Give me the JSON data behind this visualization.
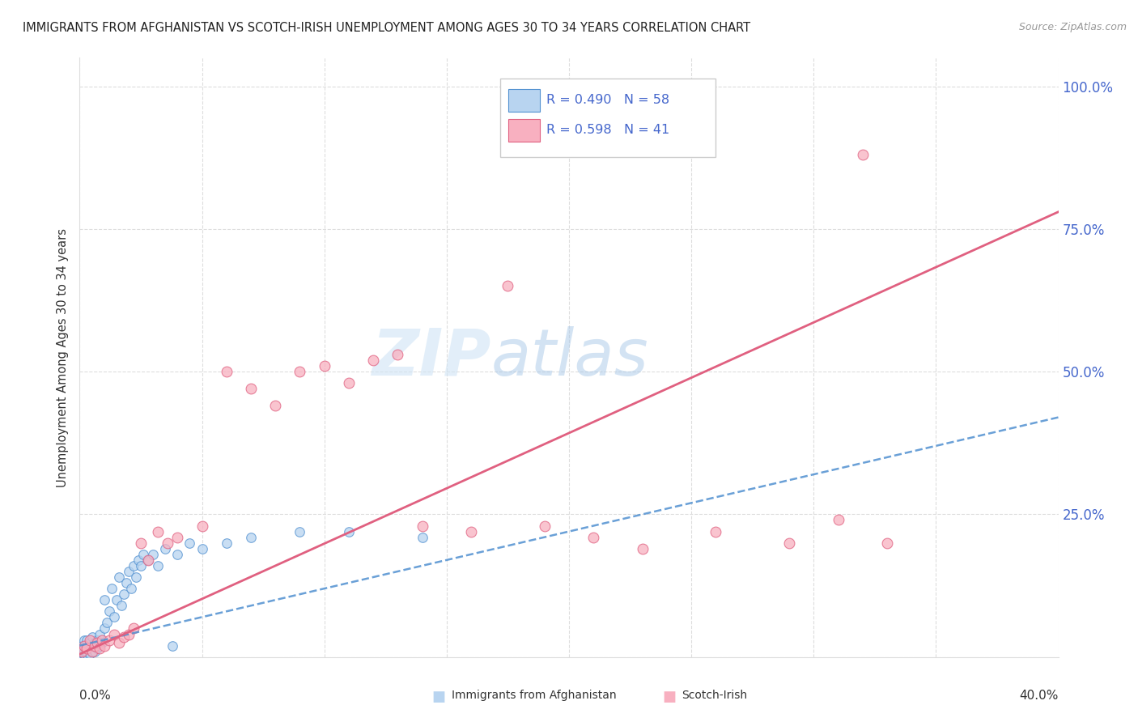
{
  "title": "IMMIGRANTS FROM AFGHANISTAN VS SCOTCH-IRISH UNEMPLOYMENT AMONG AGES 30 TO 34 YEARS CORRELATION CHART",
  "source": "Source: ZipAtlas.com",
  "ylabel": "Unemployment Among Ages 30 to 34 years",
  "ytick_vals": [
    0.0,
    0.25,
    0.5,
    0.75,
    1.0
  ],
  "ytick_labels": [
    "",
    "25.0%",
    "50.0%",
    "75.0%",
    "100.0%"
  ],
  "xlim": [
    0.0,
    0.4
  ],
  "ylim": [
    0.0,
    1.05
  ],
  "afghanistan_R": "0.490",
  "afghanistan_N": "58",
  "scotch_R": "0.598",
  "scotch_N": "41",
  "afghanistan_fill": "#b8d4f0",
  "afghanistan_edge": "#5090d0",
  "scotch_fill": "#f8b0c0",
  "scotch_edge": "#e06080",
  "afg_line_color": "#5090d0",
  "sci_line_color": "#e06080",
  "legend_text_color": "#4466cc",
  "watermark_color": "#d0e4f5",
  "background": "#ffffff",
  "grid_color": "#dddddd",
  "title_color": "#222222",
  "ylabel_color": "#333333",
  "tick_label_color": "#4466cc",
  "afg_scatter_x": [
    0.0005,
    0.001,
    0.001,
    0.0015,
    0.0015,
    0.002,
    0.002,
    0.002,
    0.002,
    0.0025,
    0.003,
    0.003,
    0.003,
    0.003,
    0.004,
    0.004,
    0.004,
    0.005,
    0.005,
    0.005,
    0.006,
    0.006,
    0.007,
    0.007,
    0.008,
    0.008,
    0.009,
    0.01,
    0.01,
    0.011,
    0.012,
    0.013,
    0.014,
    0.015,
    0.016,
    0.017,
    0.018,
    0.019,
    0.02,
    0.021,
    0.022,
    0.023,
    0.024,
    0.025,
    0.026,
    0.028,
    0.03,
    0.032,
    0.035,
    0.038,
    0.04,
    0.045,
    0.05,
    0.06,
    0.07,
    0.09,
    0.11,
    0.14
  ],
  "afg_scatter_y": [
    0.005,
    0.01,
    0.02,
    0.005,
    0.015,
    0.005,
    0.01,
    0.02,
    0.03,
    0.01,
    0.005,
    0.01,
    0.02,
    0.03,
    0.005,
    0.015,
    0.025,
    0.01,
    0.02,
    0.035,
    0.01,
    0.025,
    0.015,
    0.03,
    0.02,
    0.04,
    0.025,
    0.05,
    0.1,
    0.06,
    0.08,
    0.12,
    0.07,
    0.1,
    0.14,
    0.09,
    0.11,
    0.13,
    0.15,
    0.12,
    0.16,
    0.14,
    0.17,
    0.16,
    0.18,
    0.17,
    0.18,
    0.16,
    0.19,
    0.02,
    0.18,
    0.2,
    0.19,
    0.2,
    0.21,
    0.22,
    0.22,
    0.21
  ],
  "sci_scatter_x": [
    0.001,
    0.002,
    0.003,
    0.004,
    0.005,
    0.006,
    0.007,
    0.008,
    0.009,
    0.01,
    0.012,
    0.014,
    0.016,
    0.018,
    0.02,
    0.022,
    0.025,
    0.028,
    0.032,
    0.036,
    0.04,
    0.05,
    0.06,
    0.07,
    0.08,
    0.09,
    0.1,
    0.11,
    0.12,
    0.13,
    0.14,
    0.16,
    0.175,
    0.19,
    0.21,
    0.23,
    0.26,
    0.29,
    0.31,
    0.32,
    0.33
  ],
  "sci_scatter_y": [
    0.01,
    0.02,
    0.015,
    0.03,
    0.01,
    0.02,
    0.025,
    0.015,
    0.03,
    0.02,
    0.03,
    0.04,
    0.025,
    0.035,
    0.04,
    0.05,
    0.2,
    0.17,
    0.22,
    0.2,
    0.21,
    0.23,
    0.5,
    0.47,
    0.44,
    0.5,
    0.51,
    0.48,
    0.52,
    0.53,
    0.23,
    0.22,
    0.65,
    0.23,
    0.21,
    0.19,
    0.22,
    0.2,
    0.24,
    0.88,
    0.2
  ],
  "afg_line_x0": 0.0,
  "afg_line_x1": 0.4,
  "afg_line_y0": 0.02,
  "afg_line_y1": 0.42,
  "sci_line_x0": 0.0,
  "sci_line_x1": 0.4,
  "sci_line_y0": 0.005,
  "sci_line_y1": 0.78
}
